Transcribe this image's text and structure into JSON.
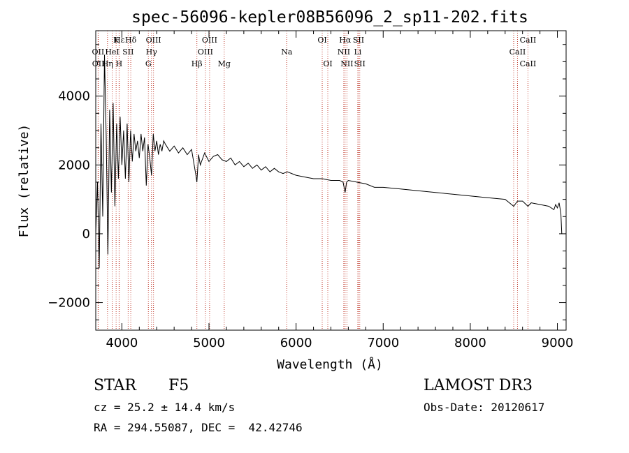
{
  "chart_data": {
    "type": "line",
    "title": "spec-56096-kepler08B56096_2_sp11-202.fits",
    "xlabel": "Wavelength (Å)",
    "ylabel": "Flux (relative)",
    "xlim": [
      3700,
      9100
    ],
    "ylim": [
      -2800,
      5900
    ],
    "x_ticks": [
      4000,
      5000,
      6000,
      7000,
      8000,
      9000
    ],
    "x_tick_labels": [
      "4000",
      "5000",
      "6000",
      "7000",
      "8000",
      "9000"
    ],
    "y_ticks": [
      -2000,
      0,
      2000,
      4000
    ],
    "y_tick_labels": [
      "−2000",
      "0",
      "2000",
      "4000"
    ],
    "series": [
      {
        "name": "flux",
        "x": [
          3700,
          3720,
          3740,
          3760,
          3780,
          3800,
          3820,
          3840,
          3860,
          3880,
          3900,
          3920,
          3940,
          3960,
          3980,
          4000,
          4020,
          4040,
          4060,
          4080,
          4100,
          4120,
          4140,
          4160,
          4180,
          4200,
          4220,
          4240,
          4260,
          4280,
          4300,
          4320,
          4340,
          4360,
          4380,
          4400,
          4420,
          4440,
          4460,
          4480,
          4500,
          4550,
          4600,
          4650,
          4700,
          4750,
          4800,
          4850,
          4861,
          4880,
          4900,
          4950,
          5000,
          5050,
          5100,
          5150,
          5200,
          5250,
          5300,
          5350,
          5400,
          5450,
          5500,
          5550,
          5600,
          5650,
          5700,
          5750,
          5800,
          5850,
          5900,
          6000,
          6100,
          6200,
          6300,
          6400,
          6500,
          6540,
          6563,
          6580,
          6600,
          6700,
          6800,
          6900,
          7000,
          7200,
          7400,
          7600,
          7800,
          8000,
          8200,
          8400,
          8498,
          8542,
          8600,
          8662,
          8700,
          8800,
          8900,
          8960,
          8980,
          9000,
          9020,
          9040,
          9050
        ],
        "y": [
          0,
          1500,
          -1000,
          3200,
          500,
          5200,
          2800,
          -600,
          3600,
          1200,
          3800,
          800,
          3200,
          1600,
          3400,
          2000,
          3000,
          1600,
          3200,
          1500,
          3000,
          2100,
          2900,
          2400,
          2700,
          2200,
          2900,
          2400,
          2800,
          1400,
          2600,
          2200,
          1700,
          2900,
          2400,
          2700,
          2300,
          2600,
          2400,
          2700,
          2600,
          2400,
          2550,
          2350,
          2500,
          2300,
          2450,
          1700,
          1500,
          2300,
          2000,
          2350,
          2100,
          2250,
          2300,
          2150,
          2100,
          2200,
          2000,
          2100,
          1950,
          2050,
          1900,
          2000,
          1850,
          1950,
          1800,
          1900,
          1800,
          1750,
          1800,
          1700,
          1650,
          1600,
          1600,
          1550,
          1550,
          1500,
          1200,
          1500,
          1550,
          1500,
          1450,
          1350,
          1350,
          1300,
          1250,
          1200,
          1150,
          1100,
          1050,
          1000,
          800,
          950,
          950,
          800,
          900,
          850,
          800,
          700,
          850,
          750,
          900,
          600,
          0
        ]
      }
    ],
    "spectral_lines": [
      {
        "label": "Hε",
        "wl": 3970,
        "row": 1
      },
      {
        "label": "OII",
        "wl": 3727,
        "row": 2
      },
      {
        "label": "OII",
        "wl": 3729,
        "row": 3
      },
      {
        "label": "K",
        "wl": 3934,
        "row": 1
      },
      {
        "label": "HeI",
        "wl": 3889,
        "row": 2
      },
      {
        "label": "Hη",
        "wl": 3835,
        "row": 3
      },
      {
        "label": "H",
        "wl": 3968,
        "row": 3
      },
      {
        "label": "Hδ",
        "wl": 4102,
        "row": 1
      },
      {
        "label": "SII",
        "wl": 4072,
        "row": 2
      },
      {
        "label": "OIII",
        "wl": 4363,
        "row": 1
      },
      {
        "label": "Hγ",
        "wl": 4340,
        "row": 2
      },
      {
        "label": "G",
        "wl": 4304,
        "row": 3
      },
      {
        "label": "Hβ",
        "wl": 4861,
        "row": 3
      },
      {
        "label": "OIII",
        "wl": 5007,
        "row": 1
      },
      {
        "label": "OIII",
        "wl": 4959,
        "row": 2
      },
      {
        "label": "Mg",
        "wl": 5175,
        "row": 3
      },
      {
        "label": "Na",
        "wl": 5893,
        "row": 2
      },
      {
        "label": "OI",
        "wl": 6300,
        "row": 1
      },
      {
        "label": "OI",
        "wl": 6364,
        "row": 3
      },
      {
        "label": "Hα",
        "wl": 6563,
        "row": 1
      },
      {
        "label": "NII",
        "wl": 6548,
        "row": 2
      },
      {
        "label": "NII",
        "wl": 6584,
        "row": 3
      },
      {
        "label": "SII",
        "wl": 6717,
        "row": 1
      },
      {
        "label": "Li",
        "wl": 6708,
        "row": 2
      },
      {
        "label": "SII",
        "wl": 6731,
        "row": 3
      },
      {
        "label": "CaII",
        "wl": 8662,
        "row": 1
      },
      {
        "label": "CaII",
        "wl": 8542,
        "row": 2
      },
      {
        "label": "CaII",
        "wl": 8662,
        "row": 3
      },
      {
        "label": "",
        "wl": 8498,
        "row": 0
      }
    ]
  },
  "info": {
    "object_type": "STAR",
    "subclass": "F5",
    "survey": "LAMOST DR3",
    "cz": "cz = 25.2 ± 14.4 km/s",
    "obs_date": "Obs-Date: 20120617",
    "coords": "RA = 294.55087, DEC =  42.42746"
  }
}
